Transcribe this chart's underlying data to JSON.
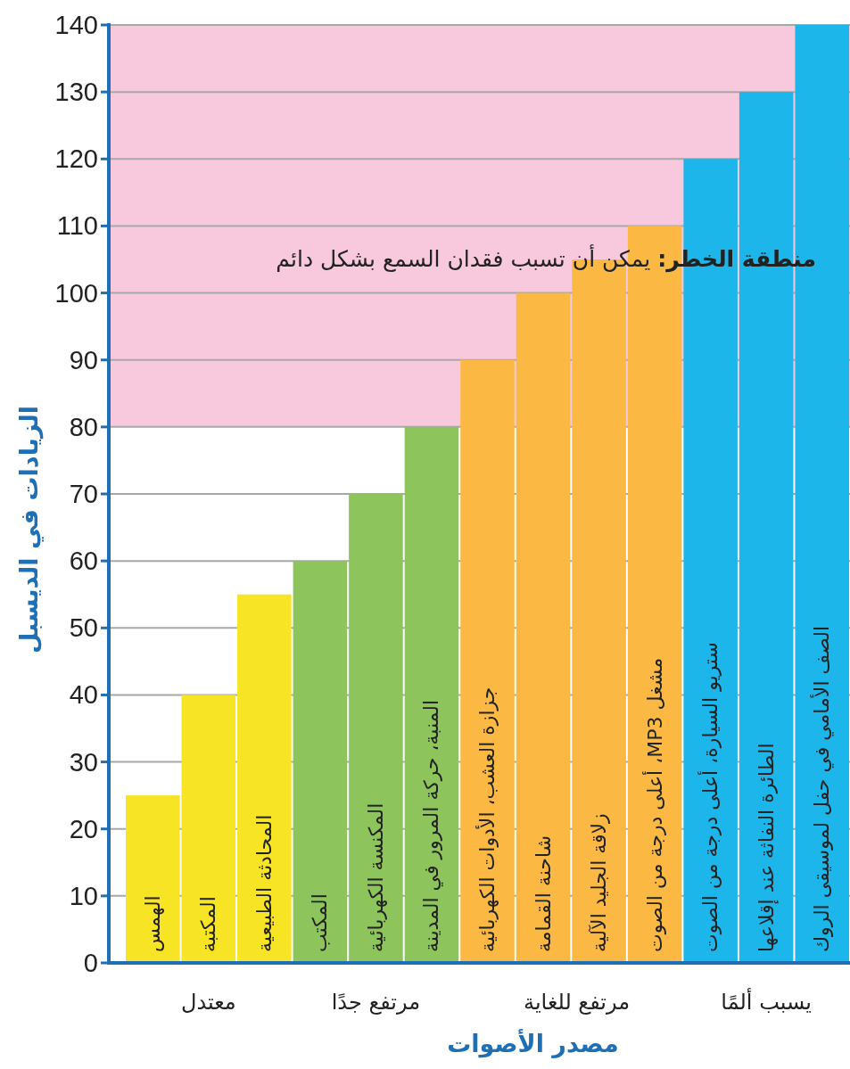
{
  "chart_data": {
    "type": "bar",
    "categories": [
      "الهمس",
      "المكتبة",
      "المحادثة الطبيعية",
      "المكتب",
      "المكنسة الكهربائية",
      "المنبة، حركة المرور في المدينة",
      "جزازة العشب، الأدوات الكهربائية",
      "شاحنة القمامة",
      "زلاقة الجليد الآلية",
      "مشغل MP3، أعلى درجة من الصوت",
      "ستريو السيارة، أعلى درجة من الصوت",
      "الطائرة النفاثة عند إقلاعها",
      "الصف الأمامي في حفل لموسيقى الروك"
    ],
    "values": [
      25,
      40,
      55,
      60,
      70,
      80,
      90,
      100,
      105,
      110,
      120,
      130,
      140
    ],
    "colors": [
      "#f7e424",
      "#f7e424",
      "#f7e424",
      "#8dc45c",
      "#8dc45c",
      "#8dc45c",
      "#fbb943",
      "#fbb943",
      "#fbb943",
      "#fbb943",
      "#1cb6ea",
      "#1cb6ea",
      "#1cb6ea"
    ],
    "xlabel": "مصدر الأصوات",
    "ylabel": "الزيادات في الديسبل",
    "ylim": [
      0,
      140
    ],
    "yticks": [
      0,
      10,
      20,
      30,
      40,
      50,
      60,
      70,
      80,
      90,
      100,
      110,
      120,
      130,
      140
    ],
    "grid": "y",
    "bands": [
      {
        "axis": "y",
        "from": 80,
        "to": 140,
        "label": "**منطقة الخطر:** يمكن أن تسبب فقدان السمع بشكل دائم",
        "color": "#f8c8dc"
      }
    ],
    "annotations": [
      "معتدل",
      "مرتفع جدًا",
      "مرتفع للغاية",
      "يسبب ألمًا"
    ]
  }
}
